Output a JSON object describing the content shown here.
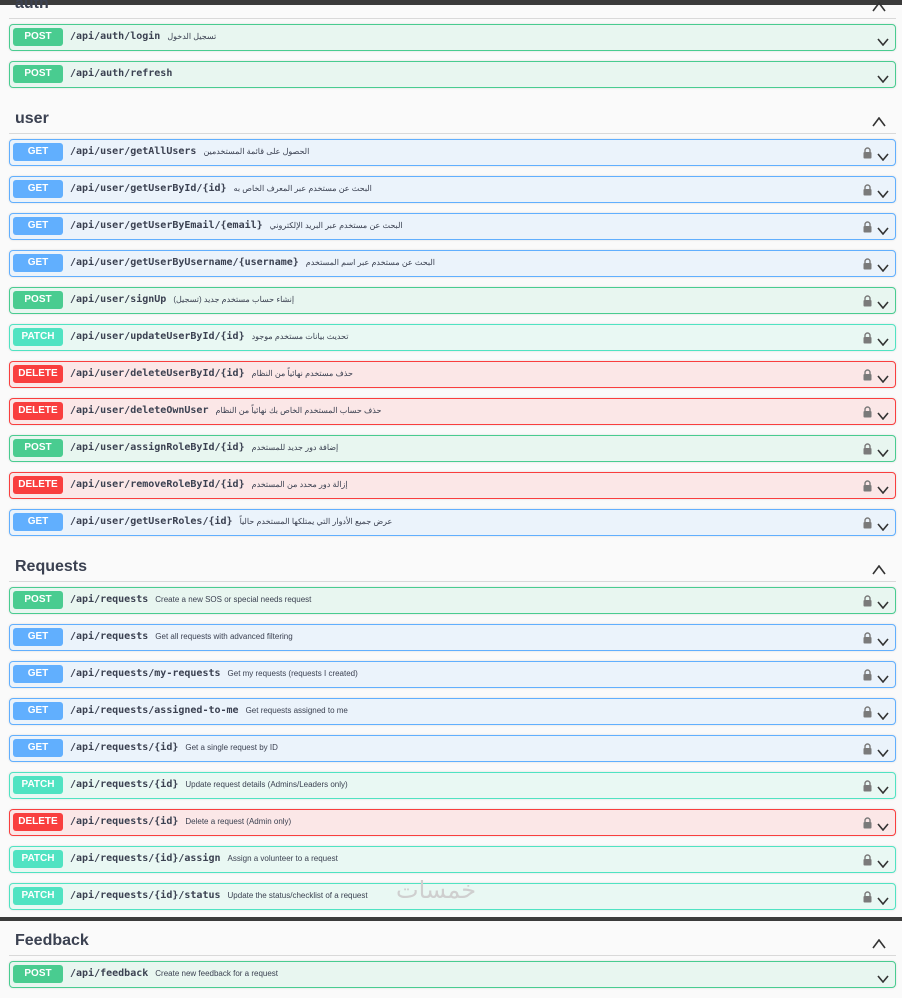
{
  "watermark": "خمسات",
  "sections": [
    {
      "title": "auth",
      "operations": [
        {
          "method": "POST",
          "path": "/api/auth/login",
          "description": "تسجيل الدخول",
          "locked": false
        },
        {
          "method": "POST",
          "path": "/api/auth/refresh",
          "description": "",
          "locked": false
        }
      ]
    },
    {
      "title": "user",
      "operations": [
        {
          "method": "GET",
          "path": "/api/user/getAllUsers",
          "description": "الحصول على قائمة المستخدمين",
          "locked": true
        },
        {
          "method": "GET",
          "path": "/api/user/getUserById/{id}",
          "description": "البحث عن مستخدم عبر المعرف الخاص به",
          "locked": true
        },
        {
          "method": "GET",
          "path": "/api/user/getUserByEmail/{email}",
          "description": "البحث عن مستخدم عبر البريد الإلكتروني",
          "locked": true
        },
        {
          "method": "GET",
          "path": "/api/user/getUserByUsername/{username}",
          "description": "البحث عن مستخدم عبر اسم المستخدم",
          "locked": true
        },
        {
          "method": "POST",
          "path": "/api/user/signUp",
          "description": "إنشاء حساب مستخدم جديد (تسجيل)",
          "locked": true
        },
        {
          "method": "PATCH",
          "path": "/api/user/updateUserById/{id}",
          "description": "تحديث بيانات مستخدم موجود",
          "locked": true
        },
        {
          "method": "DELETE",
          "path": "/api/user/deleteUserById/{id}",
          "description": "حذف مستخدم نهائياً من النظام",
          "locked": true
        },
        {
          "method": "DELETE",
          "path": "/api/user/deleteOwnUser",
          "description": "حذف حساب المستخدم الخاص بك نهائياً من النظام",
          "locked": true
        },
        {
          "method": "POST",
          "path": "/api/user/assignRoleById/{id}",
          "description": "إضافة دور جديد للمستخدم",
          "locked": true
        },
        {
          "method": "DELETE",
          "path": "/api/user/removeRoleById/{id}",
          "description": "إزالة دور محدد من المستخدم",
          "locked": true
        },
        {
          "method": "GET",
          "path": "/api/user/getUserRoles/{id}",
          "description": "عرض جميع الأدوار التي يمتلكها المستخدم حالياً",
          "locked": true
        }
      ]
    },
    {
      "title": "Requests",
      "operations": [
        {
          "method": "POST",
          "path": "/api/requests",
          "description": "Create a new SOS or special needs request",
          "locked": true
        },
        {
          "method": "GET",
          "path": "/api/requests",
          "description": "Get all requests with advanced filtering",
          "locked": true
        },
        {
          "method": "GET",
          "path": "/api/requests/my-requests",
          "description": "Get my requests (requests I created)",
          "locked": true
        },
        {
          "method": "GET",
          "path": "/api/requests/assigned-to-me",
          "description": "Get requests assigned to me",
          "locked": true
        },
        {
          "method": "GET",
          "path": "/api/requests/{id}",
          "description": "Get a single request by ID",
          "locked": true
        },
        {
          "method": "PATCH",
          "path": "/api/requests/{id}",
          "description": "Update request details (Admins/Leaders only)",
          "locked": true
        },
        {
          "method": "DELETE",
          "path": "/api/requests/{id}",
          "description": "Delete a request (Admin only)",
          "locked": true
        },
        {
          "method": "PATCH",
          "path": "/api/requests/{id}/assign",
          "description": "Assign a volunteer to a request",
          "locked": true
        },
        {
          "method": "PATCH",
          "path": "/api/requests/{id}/status",
          "description": "Update the status/checklist of a request",
          "locked": true
        }
      ]
    },
    {
      "title": "Feedback",
      "operations": [
        {
          "method": "POST",
          "path": "/api/feedback",
          "description": "Create new feedback for a request",
          "locked": false
        }
      ]
    }
  ]
}
